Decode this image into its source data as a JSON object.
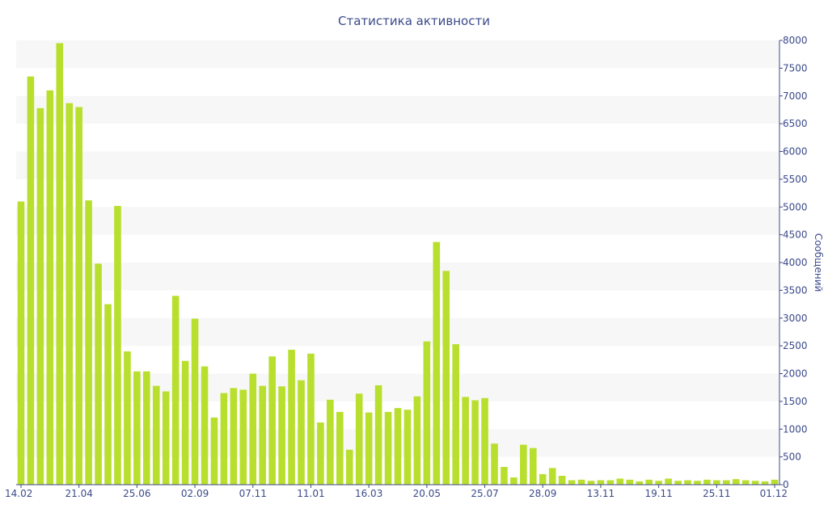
{
  "chart_data": {
    "type": "bar",
    "title": "Статистика активности",
    "xlabel": "",
    "ylabel": "Сообщений",
    "y_axis_side": "right",
    "ylim": [
      0,
      8000
    ],
    "yticks": [
      0,
      500,
      1000,
      1500,
      2000,
      2500,
      3000,
      3500,
      4000,
      4500,
      5000,
      5500,
      6000,
      6500,
      7000,
      7500,
      8000
    ],
    "grid": "alternating-bands",
    "bar_color": "#b9df2e",
    "text_color": "#3b4a8a",
    "band_color": "#f7f7f7",
    "xtick_labels": [
      {
        "index": 0,
        "label": "14.02"
      },
      {
        "index": 6,
        "label": "21.04"
      },
      {
        "index": 12,
        "label": "25.06"
      },
      {
        "index": 18,
        "label": "02.09"
      },
      {
        "index": 24,
        "label": "07.11"
      },
      {
        "index": 30,
        "label": "11.01"
      },
      {
        "index": 36,
        "label": "16.03"
      },
      {
        "index": 42,
        "label": "20.05"
      },
      {
        "index": 48,
        "label": "25.07"
      },
      {
        "index": 54,
        "label": "28.09"
      },
      {
        "index": 60,
        "label": "13.11"
      },
      {
        "index": 66,
        "label": "19.11"
      },
      {
        "index": 72,
        "label": "25.11"
      },
      {
        "index": 78,
        "label": "01.12"
      }
    ],
    "values": [
      5100,
      7350,
      6780,
      7100,
      7950,
      6870,
      6800,
      5120,
      3980,
      3250,
      5020,
      2400,
      2040,
      2040,
      1780,
      1680,
      3400,
      2230,
      2990,
      2130,
      1210,
      1650,
      1740,
      1710,
      2000,
      1780,
      2310,
      1770,
      2430,
      1880,
      2360,
      1120,
      1530,
      1310,
      630,
      1640,
      1300,
      1790,
      1310,
      1380,
      1350,
      1590,
      2580,
      4370,
      3850,
      2530,
      1580,
      1520,
      1560,
      740,
      320,
      130,
      720,
      660,
      190,
      300,
      160,
      80,
      90,
      70,
      80,
      80,
      110,
      90,
      60,
      90,
      70,
      110,
      70,
      80,
      70,
      90,
      80,
      80,
      100,
      80,
      70,
      60,
      90
    ]
  }
}
